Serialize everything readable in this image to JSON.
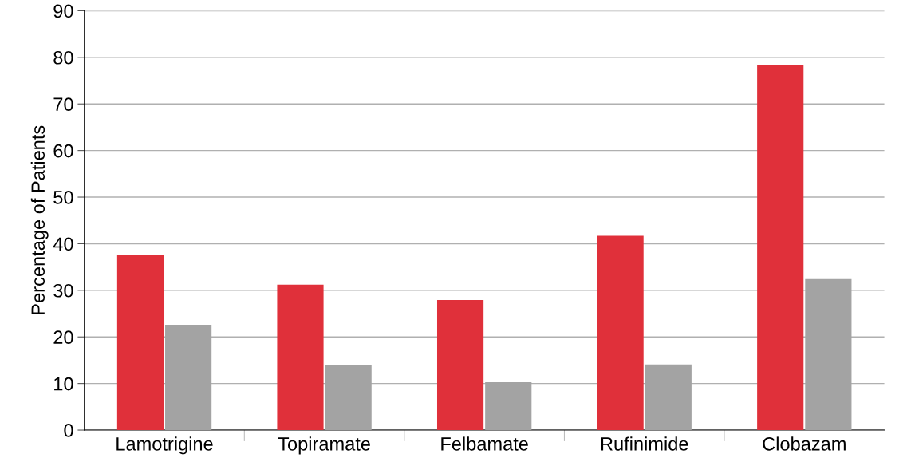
{
  "chart_data": {
    "type": "bar",
    "ylabel": "Percentage of Patients",
    "categories": [
      "Lamotrigine",
      "Topiramate",
      "Felbamate",
      "Rufinimide",
      "Clobazam"
    ],
    "series": [
      {
        "color": "#e0303a",
        "values": [
          37.5,
          31.2,
          27.9,
          41.7,
          78.3
        ]
      },
      {
        "color": "#a3a3a3",
        "values": [
          22.6,
          13.9,
          10.3,
          14.1,
          32.4
        ]
      }
    ],
    "ylim": [
      0,
      90
    ],
    "yticks": [
      0,
      10,
      20,
      30,
      40,
      50,
      60,
      70,
      80,
      90
    ],
    "grid": "y",
    "legend": false
  }
}
